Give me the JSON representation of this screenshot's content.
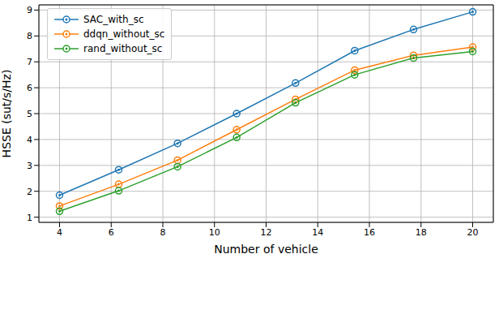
{
  "chart_data": {
    "type": "line",
    "x_label": "Number of vehicle",
    "y_label": "HSSE (sut/s/Hz)",
    "x": [
      4,
      6.29,
      8.57,
      10.86,
      13.14,
      15.43,
      17.71,
      20
    ],
    "series": [
      {
        "name": "SAC_with_sc",
        "color": "#1f77b4",
        "values": [
          1.85,
          2.83,
          3.85,
          5.0,
          6.18,
          7.43,
          8.25,
          8.93
        ]
      },
      {
        "name": "ddqn_without_sc",
        "color": "#ff7f0e",
        "values": [
          1.43,
          2.27,
          3.2,
          4.38,
          5.55,
          6.68,
          7.25,
          7.57
        ]
      },
      {
        "name": "rand_without_sc",
        "color": "#2ca02c",
        "values": [
          1.23,
          2.02,
          2.95,
          4.08,
          5.42,
          6.5,
          7.15,
          7.4
        ]
      }
    ],
    "xlim": [
      3.2,
      20.8
    ],
    "ylim": [
      0.8,
      9.2
    ],
    "xticks": [
      4,
      6,
      8,
      10,
      12,
      14,
      16,
      18,
      20
    ],
    "yticks": [
      1,
      2,
      3,
      4,
      5,
      6,
      7,
      8,
      9
    ],
    "grid": true,
    "legend": "upper left",
    "marker": "circle"
  }
}
